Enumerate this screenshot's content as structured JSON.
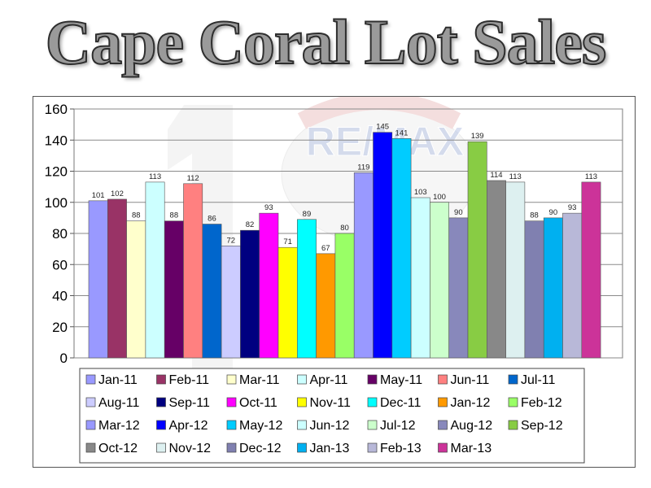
{
  "title": "Cape Coral Lot Sales",
  "logo": {
    "text": "RE/MAX",
    "colors": [
      "#d52b1e",
      "#ffffff",
      "#2d4aa0"
    ]
  },
  "chart_data": {
    "type": "bar",
    "title": "Cape Coral Lot Sales",
    "xlabel": "",
    "ylabel": "",
    "ylim": [
      0,
      160
    ],
    "yticks": [
      0,
      20,
      40,
      60,
      80,
      100,
      120,
      140,
      160
    ],
    "grid": true,
    "legend": "bottom",
    "categories": [
      "Jan-11",
      "Feb-11",
      "Mar-11",
      "Apr-11",
      "May-11",
      "Jun-11",
      "Jul-11",
      "Aug-11",
      "Sep-11",
      "Oct-11",
      "Nov-11",
      "Dec-11",
      "Jan-12",
      "Feb-12",
      "Mar-12",
      "Apr-12",
      "May-12",
      "Jun-12",
      "Jul-12",
      "Aug-12",
      "Sep-12",
      "Oct-12",
      "Nov-12",
      "Dec-12",
      "Jan-13",
      "Feb-13",
      "Mar-13"
    ],
    "values": [
      101,
      102,
      88,
      113,
      88,
      112,
      86,
      72,
      82,
      93,
      71,
      89,
      67,
      80,
      119,
      145,
      141,
      103,
      100,
      90,
      139,
      114,
      113,
      88,
      90,
      93,
      113
    ],
    "colors": [
      "#9999ff",
      "#993366",
      "#ffffcc",
      "#ccffff",
      "#660066",
      "#ff8080",
      "#0066cc",
      "#ccccff",
      "#000080",
      "#ff00ff",
      "#ffff00",
      "#00ffff",
      "#ff9900",
      "#99ff66",
      "#9999ff",
      "#0000ff",
      "#00ccff",
      "#ccffff",
      "#ccffcc",
      "#8888bb",
      "#88cc44",
      "#888888",
      "#ddf0f0",
      "#8080b0",
      "#00b0f0",
      "#b8b8d8",
      "#cc3399"
    ]
  }
}
